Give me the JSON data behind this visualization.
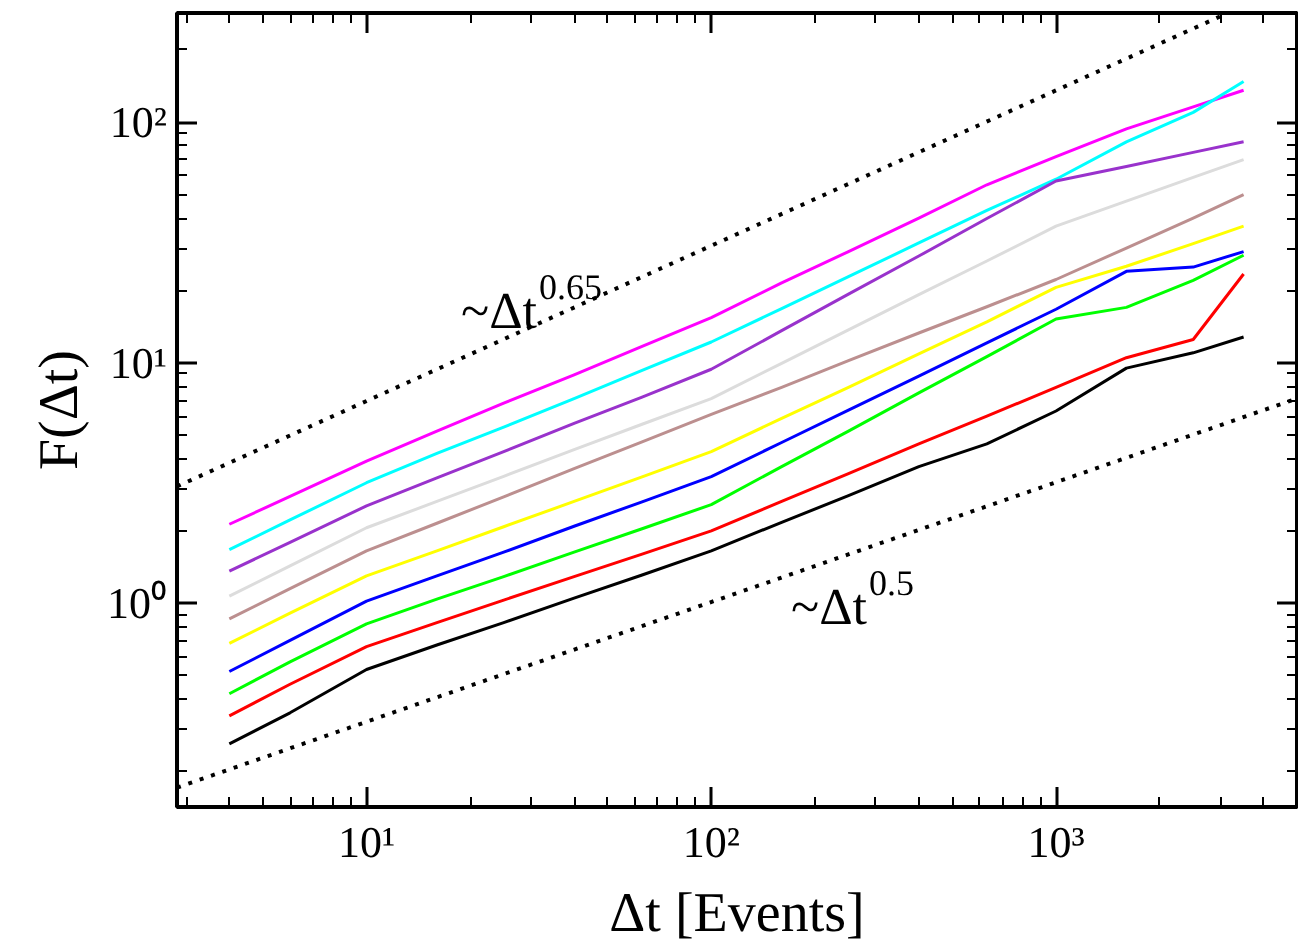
{
  "chart_data": {
    "type": "line",
    "xlabel": "Δt [Events]",
    "ylabel": "F(Δt)",
    "log": "xy",
    "grid": false,
    "xlim": [
      2.82,
      5000
    ],
    "ylim": [
      0.142,
      285
    ],
    "xticks": [
      {
        "value": 3,
        "label": null
      },
      {
        "value": 4,
        "label": null
      },
      {
        "value": 5,
        "label": null
      },
      {
        "value": 6,
        "label": null
      },
      {
        "value": 7,
        "label": null
      },
      {
        "value": 8,
        "label": null
      },
      {
        "value": 9,
        "label": null
      },
      {
        "value": 10,
        "label": "10¹"
      },
      {
        "value": 20,
        "label": null
      },
      {
        "value": 30,
        "label": null
      },
      {
        "value": 40,
        "label": null
      },
      {
        "value": 50,
        "label": null
      },
      {
        "value": 60,
        "label": null
      },
      {
        "value": 70,
        "label": null
      },
      {
        "value": 80,
        "label": null
      },
      {
        "value": 90,
        "label": null
      },
      {
        "value": 100,
        "label": "10²"
      },
      {
        "value": 200,
        "label": null
      },
      {
        "value": 300,
        "label": null
      },
      {
        "value": 400,
        "label": null
      },
      {
        "value": 500,
        "label": null
      },
      {
        "value": 600,
        "label": null
      },
      {
        "value": 700,
        "label": null
      },
      {
        "value": 800,
        "label": null
      },
      {
        "value": 900,
        "label": null
      },
      {
        "value": 1000,
        "label": "10³"
      },
      {
        "value": 2000,
        "label": null
      },
      {
        "value": 3000,
        "label": null
      },
      {
        "value": 4000,
        "label": null
      }
    ],
    "yticks": [
      {
        "value": 0.2,
        "label": null
      },
      {
        "value": 0.3,
        "label": null
      },
      {
        "value": 0.4,
        "label": null
      },
      {
        "value": 0.5,
        "label": null
      },
      {
        "value": 0.6,
        "label": null
      },
      {
        "value": 0.7,
        "label": null
      },
      {
        "value": 0.8,
        "label": null
      },
      {
        "value": 0.9,
        "label": null
      },
      {
        "value": 1,
        "label": "10⁰"
      },
      {
        "value": 2,
        "label": null
      },
      {
        "value": 3,
        "label": null
      },
      {
        "value": 4,
        "label": null
      },
      {
        "value": 5,
        "label": null
      },
      {
        "value": 6,
        "label": null
      },
      {
        "value": 7,
        "label": null
      },
      {
        "value": 8,
        "label": null
      },
      {
        "value": 9,
        "label": null
      },
      {
        "value": 10,
        "label": "10¹"
      },
      {
        "value": 20,
        "label": null
      },
      {
        "value": 30,
        "label": null
      },
      {
        "value": 40,
        "label": null
      },
      {
        "value": 50,
        "label": null
      },
      {
        "value": 60,
        "label": null
      },
      {
        "value": 70,
        "label": null
      },
      {
        "value": 80,
        "label": null
      },
      {
        "value": 90,
        "label": null
      },
      {
        "value": 100,
        "label": "10²"
      },
      {
        "value": 200,
        "label": null
      }
    ],
    "x": [
      4,
      6,
      10,
      16,
      25,
      40,
      63,
      100,
      160,
      250,
      400,
      630,
      1000,
      1600,
      2500,
      3500
    ],
    "series": [
      {
        "color": "#ff00ff",
        "values": [
          2.13,
          2.78,
          3.9,
          5.2,
          6.8,
          8.9,
          11.7,
          15.4,
          21.5,
          29.0,
          40,
          55,
          72,
          94,
          116,
          136
        ]
      },
      {
        "color": "#00ffff",
        "values": [
          1.67,
          2.22,
          3.17,
          4.2,
          5.4,
          7.1,
          9.3,
          12.2,
          16.8,
          22.8,
          31.5,
          43,
          58,
          83,
          110,
          148
        ]
      },
      {
        "color": "#9932cc",
        "values": [
          1.36,
          1.79,
          2.54,
          3.32,
          4.27,
          5.6,
          7.2,
          9.4,
          13.6,
          19.3,
          27.8,
          39.8,
          57,
          65.5,
          75,
          83
        ]
      },
      {
        "color": "#dcdcdc",
        "values": [
          1.07,
          1.43,
          2.06,
          2.65,
          3.37,
          4.35,
          5.55,
          7.1,
          9.95,
          13.7,
          19.2,
          26.5,
          37,
          47,
          59,
          70
        ]
      },
      {
        "color": "#bc8f8f",
        "values": [
          0.86,
          1.15,
          1.65,
          2.15,
          2.77,
          3.63,
          4.69,
          6.1,
          7.9,
          10.2,
          13.3,
          17.1,
          22.2,
          30,
          40,
          50
        ]
      },
      {
        "color": "#ffff00",
        "values": [
          0.68,
          0.91,
          1.3,
          1.65,
          2.08,
          2.65,
          3.35,
          4.27,
          5.87,
          7.9,
          10.9,
          14.8,
          20.6,
          25.2,
          31.3,
          37
        ]
      },
      {
        "color": "#0000ff",
        "values": [
          0.52,
          0.7,
          1.02,
          1.3,
          1.63,
          2.09,
          2.64,
          3.36,
          4.66,
          6.35,
          8.8,
          12.1,
          16.7,
          24,
          25,
          29
        ]
      },
      {
        "color": "#00ff00",
        "values": [
          0.42,
          0.57,
          0.82,
          1.04,
          1.29,
          1.63,
          2.04,
          2.57,
          3.7,
          5.2,
          7.5,
          10.6,
          15.2,
          17,
          22,
          28
        ]
      },
      {
        "color": "#ff0000",
        "values": [
          0.34,
          0.46,
          0.66,
          0.83,
          1.03,
          1.29,
          1.6,
          2.0,
          2.65,
          3.46,
          4.6,
          6.0,
          7.9,
          10.5,
          12.5,
          23.4
        ]
      },
      {
        "color": "#000000",
        "values": [
          0.26,
          0.35,
          0.53,
          0.67,
          0.83,
          1.05,
          1.31,
          1.65,
          2.17,
          2.8,
          3.7,
          4.6,
          6.3,
          9.5,
          11,
          12.8
        ]
      },
      {
        "type": "line",
        "color": "#000000",
        "line_style": "dotted",
        "x": [
          2.82,
          3150
        ],
        "values": [
          3.06,
          285
        ]
      },
      {
        "type": "line",
        "color": "#000000",
        "line_style": "dotted",
        "x": [
          2.82,
          5000
        ],
        "values": [
          0.171,
          7.1
        ]
      }
    ],
    "annotations": [
      "~Δt$^{0.65}$",
      "~Δt$^{0.5}$"
    ]
  }
}
